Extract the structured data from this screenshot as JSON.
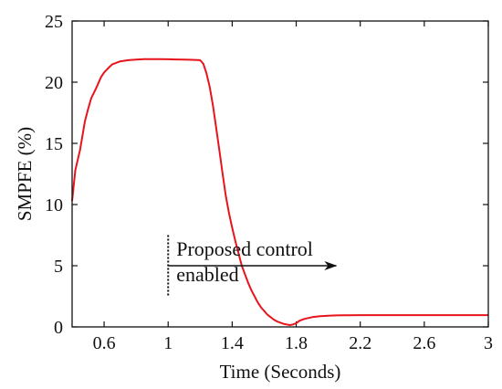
{
  "chart_data": {
    "type": "line",
    "xlabel": "Time (Seconds)",
    "ylabel": "SMPFE (%)",
    "xlim": [
      0.4,
      3.0
    ],
    "ylim": [
      0,
      25
    ],
    "xticks": [
      0.6,
      1.0,
      1.4,
      1.8,
      2.2,
      2.6,
      3.0
    ],
    "xtick_labels": [
      "0.6",
      "1",
      "1.4",
      "1.8",
      "2.2",
      "2.6",
      "3"
    ],
    "yticks": [
      0,
      5,
      10,
      15,
      20,
      25
    ],
    "ytick_labels": [
      "0",
      "5",
      "10",
      "15",
      "20",
      "25"
    ],
    "grid": false,
    "series": [
      {
        "color": "#e8141c",
        "x": [
          0.4,
          0.42,
          0.45,
          0.48,
          0.5,
          0.52,
          0.55,
          0.58,
          0.6,
          0.63,
          0.65,
          0.7,
          0.75,
          0.8,
          0.85,
          0.9,
          0.95,
          1.0,
          1.05,
          1.1,
          1.15,
          1.2,
          1.22,
          1.24,
          1.26,
          1.28,
          1.3,
          1.32,
          1.34,
          1.36,
          1.38,
          1.4,
          1.42,
          1.44,
          1.46,
          1.48,
          1.5,
          1.52,
          1.54,
          1.56,
          1.58,
          1.6,
          1.62,
          1.64,
          1.66,
          1.68,
          1.7,
          1.72,
          1.74,
          1.76,
          1.78,
          1.8,
          1.82,
          1.85,
          1.9,
          1.95,
          2.0,
          2.05,
          2.1,
          2.2,
          2.3,
          2.4,
          2.5,
          2.6,
          2.7,
          2.8,
          2.9,
          3.0
        ],
        "y": [
          10.3,
          12.8,
          14.5,
          16.8,
          17.8,
          18.7,
          19.5,
          20.4,
          20.8,
          21.2,
          21.45,
          21.7,
          21.8,
          21.85,
          21.88,
          21.88,
          21.88,
          21.87,
          21.86,
          21.85,
          21.83,
          21.8,
          21.5,
          20.7,
          19.6,
          18.1,
          16.3,
          14.4,
          12.5,
          10.7,
          9.3,
          8.1,
          7.0,
          6.0,
          5.0,
          4.3,
          3.6,
          3.0,
          2.5,
          2.0,
          1.6,
          1.3,
          1.0,
          0.8,
          0.6,
          0.45,
          0.35,
          0.25,
          0.2,
          0.15,
          0.2,
          0.3,
          0.5,
          0.65,
          0.8,
          0.88,
          0.92,
          0.94,
          0.95,
          0.96,
          0.96,
          0.96,
          0.96,
          0.96,
          0.96,
          0.96,
          0.96,
          0.96
        ]
      }
    ],
    "annotations": [
      {
        "text_lines": [
          "Proposed control",
          "enabled"
        ],
        "marker_x": 1.0,
        "marker_y_range": [
          2.5,
          7.5
        ],
        "arrow_from_x": 1.0,
        "arrow_to_x": 2.05,
        "arrow_y": 5.0
      }
    ]
  }
}
